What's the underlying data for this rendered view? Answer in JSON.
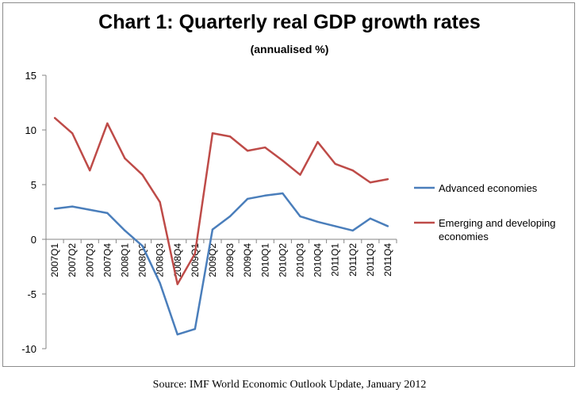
{
  "chart_data": {
    "type": "line",
    "title": "Chart 1: Quarterly real GDP growth rates",
    "subtitle": "(annualised %)",
    "xlabel": "",
    "ylabel": "",
    "ylim": [
      -10,
      15
    ],
    "yticks": [
      15,
      10,
      5,
      0,
      -5,
      -10
    ],
    "grid": false,
    "legend_position": "right",
    "categories": [
      "2007Q1",
      "2007Q2",
      "2007Q3",
      "2007Q4",
      "2008Q1",
      "2008Q2",
      "2008Q3",
      "2008Q4",
      "2009Q1",
      "2009Q2",
      "2009Q3",
      "2009Q4",
      "2010Q1",
      "2010Q2",
      "2010Q3",
      "2010Q4",
      "2011Q1",
      "2011Q2",
      "2011Q3",
      "2011Q4"
    ],
    "series": [
      {
        "name": "Advanced economies",
        "color": "#4a7ebb",
        "values": [
          2.8,
          3.0,
          2.7,
          2.4,
          0.8,
          -0.6,
          -4.0,
          -8.7,
          -8.2,
          0.9,
          2.1,
          3.7,
          4.0,
          4.2,
          2.1,
          1.6,
          1.2,
          0.8,
          1.9,
          1.2
        ]
      },
      {
        "name": "Emerging and developing economies",
        "legend_lines": [
          "Emerging and developing",
          "economies"
        ],
        "color": "#be4b48",
        "values": [
          11.1,
          9.7,
          6.3,
          10.6,
          7.4,
          5.9,
          3.4,
          -4.1,
          -1.3,
          9.7,
          9.4,
          8.1,
          8.4,
          7.2,
          5.9,
          8.9,
          6.9,
          6.3,
          5.2,
          5.5
        ]
      }
    ]
  },
  "source_text": "Source: IMF World Economic Outlook Update, January 2012"
}
